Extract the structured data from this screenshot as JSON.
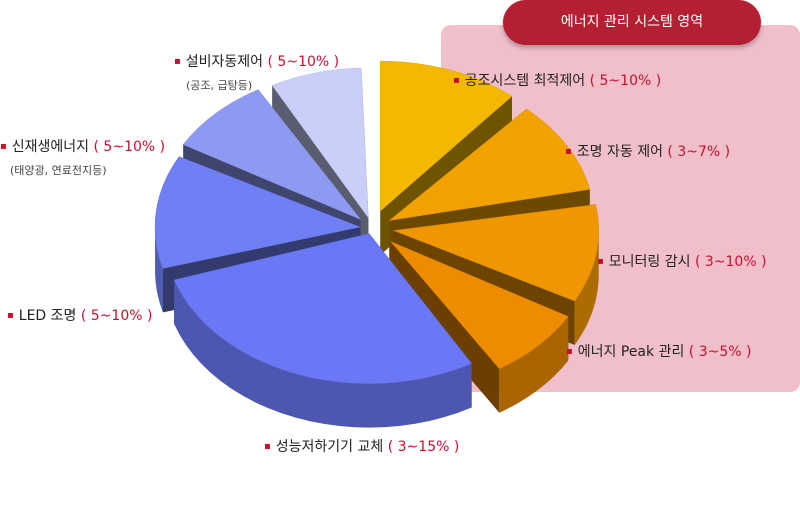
{
  "zone": {
    "title": "에너지 관리 시스템 영역",
    "color": "#b51f34"
  },
  "chart_data": {
    "type": "pie",
    "title": "",
    "slices": [
      {
        "label": "공조시스템 최적제어",
        "range": "( 5~10% )",
        "min": 5,
        "max": 10,
        "color": "#f5b800",
        "ems": true
      },
      {
        "label": "조명 자동 제어",
        "range": "( 3~7% )",
        "min": 3,
        "max": 7,
        "color": "#f2a200",
        "ems": true
      },
      {
        "label": "모니터링 감시",
        "range": "( 3~10% )",
        "min": 3,
        "max": 10,
        "color": "#ef9600",
        "ems": true
      },
      {
        "label": "에너지 Peak 관리",
        "range": "( 3~5% )",
        "min": 3,
        "max": 5,
        "color": "#ee8c00",
        "ems": true
      },
      {
        "label": "성능저하기기 교체",
        "range": "( 3~15% )",
        "min": 3,
        "max": 15,
        "color": "#6b78f6",
        "ems": false
      },
      {
        "label": "LED 조명",
        "range": "( 5~10% )",
        "min": 5,
        "max": 10,
        "color": "#6f80f4",
        "ems": false
      },
      {
        "label": "신재생에너지",
        "range": "( 5~10% )",
        "min": 5,
        "max": 10,
        "note": "(태양광, 연료전지등)",
        "color": "#8e9af2",
        "ems": false
      },
      {
        "label": "설비자동제어",
        "range": "( 5~10% )",
        "min": 5,
        "max": 10,
        "note": "(공조, 급탕등)",
        "color": "#c9cff8",
        "ems": false
      }
    ]
  }
}
